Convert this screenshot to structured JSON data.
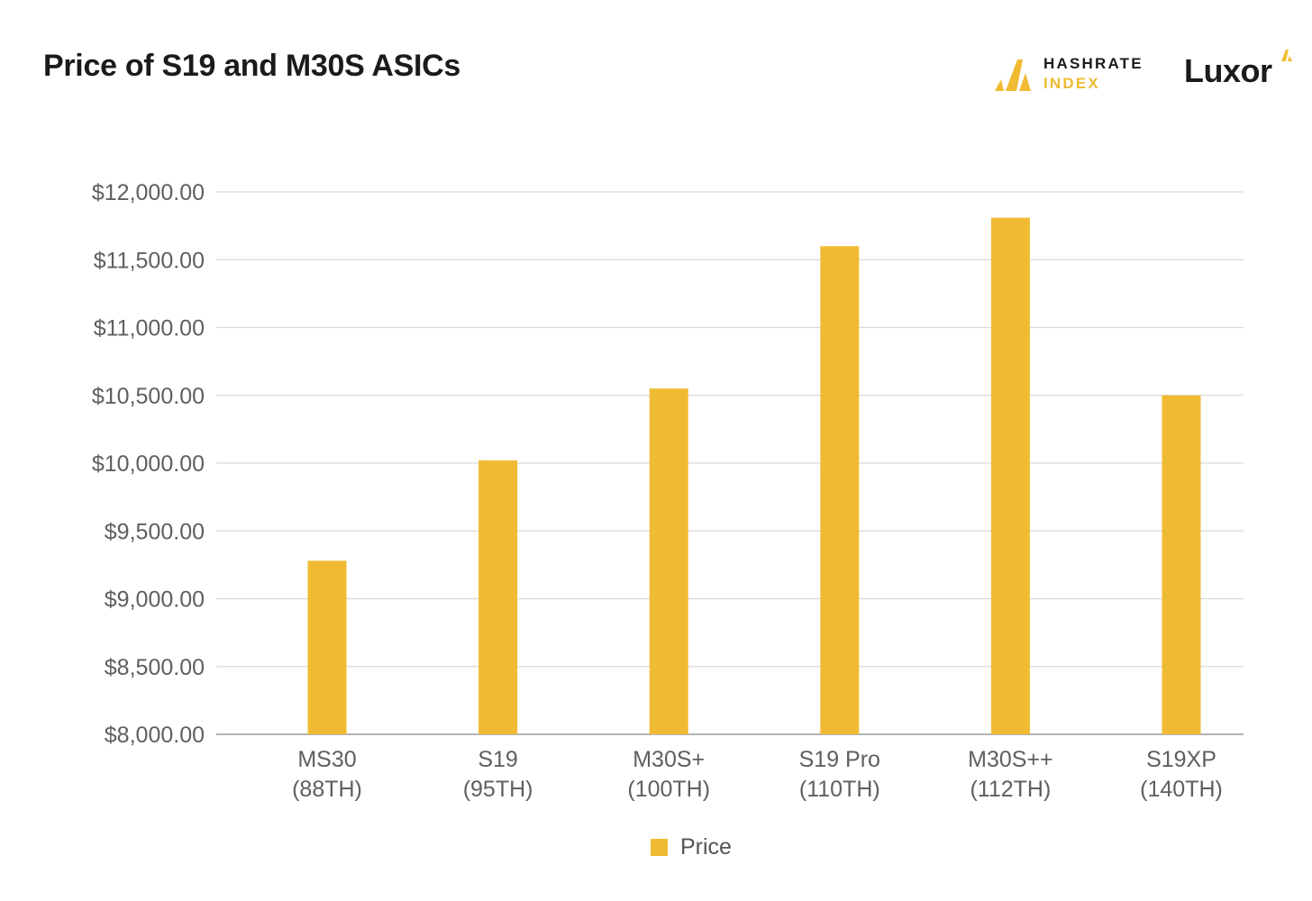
{
  "header": {
    "title": "Price of S19 and M30S ASICs",
    "brand_hashrate_line1": "HASHRATE",
    "brand_hashrate_line2": "INDEX",
    "brand_luxor": "Luxor"
  },
  "colors": {
    "bar": "#f0bb33",
    "grid": "#d9d9d9",
    "axis": "#9a9a9a",
    "tick_text": "#5f5f5f",
    "title_text": "#1b1b1b"
  },
  "chart_data": {
    "type": "bar",
    "categories": [
      [
        "MS30",
        "(88TH)"
      ],
      [
        "S19",
        "(95TH)"
      ],
      [
        "M30S+",
        "(100TH)"
      ],
      [
        "S19 Pro",
        "(110TH)"
      ],
      [
        "M30S++",
        "(112TH)"
      ],
      [
        "S19XP",
        "(140TH)"
      ]
    ],
    "series": [
      {
        "name": "Price",
        "values": [
          9280,
          10020,
          10550,
          11600,
          11810,
          10500
        ]
      }
    ],
    "ylim": [
      8000,
      12000
    ],
    "yticks": [
      8000,
      8500,
      9000,
      9500,
      10000,
      10500,
      11000,
      11500,
      12000
    ],
    "ytick_labels": [
      "$8,000.00",
      "$8,500.00",
      "$9,000.00",
      "$9,500.00",
      "$10,000.00",
      "$10,500.00",
      "$11,000.00",
      "$11,500.00",
      "$12,000.00"
    ],
    "grid": true,
    "legend": "bottom-center",
    "xlabel": "",
    "ylabel": ""
  },
  "legend": {
    "label": "Price"
  }
}
